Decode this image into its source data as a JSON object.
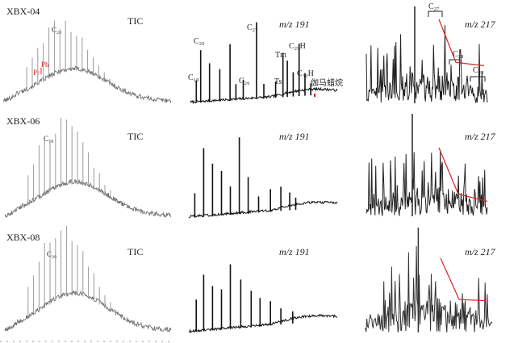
{
  "chart_data": [
    {
      "type": "line",
      "panel": "TIC",
      "rows": [
        {
          "sample": "XBX-04",
          "trace_label": "TIC",
          "annotations": [
            {
              "text": "C₂₀",
              "kind": "peak"
            },
            {
              "text": "Ph",
              "kind": "red"
            },
            {
              "text": "Pr",
              "kind": "red"
            }
          ]
        },
        {
          "sample": "XBX-06",
          "trace_label": "TIC",
          "annotations": [
            {
              "text": "C₁₈",
              "kind": "peak"
            }
          ]
        },
        {
          "sample": "XBX-08",
          "trace_label": "TIC",
          "annotations": [
            {
              "text": "C₂₀",
              "kind": "peak"
            }
          ]
        }
      ]
    },
    {
      "type": "line",
      "panel": "m/z 191",
      "rows": [
        {
          "trace_label": "m/z 191",
          "annotations": [
            {
              "text": "C₂₀",
              "kind": "peak"
            },
            {
              "text": "C₁₉",
              "kind": "peak"
            },
            {
              "text": "C₂₇",
              "kind": "peak"
            },
            {
              "text": "C₂₆",
              "kind": "peak"
            },
            {
              "text": "Tm",
              "kind": "peak"
            },
            {
              "text": "C₂₉H",
              "kind": "peak"
            },
            {
              "text": "Ts",
              "kind": "peak"
            },
            {
              "text": "C₃₀H",
              "kind": "peak"
            },
            {
              "text": "伽马蜡烷",
              "kind": "peak"
            }
          ]
        },
        {
          "trace_label": "m/z 191",
          "annotations": []
        },
        {
          "trace_label": "m/z 191",
          "annotations": []
        }
      ]
    },
    {
      "type": "line",
      "panel": "m/z 217",
      "rows": [
        {
          "trace_label": "m/z 217",
          "annotations": [
            {
              "text": "C₂₇",
              "kind": "peak"
            },
            {
              "text": "C₂₈",
              "kind": "peak"
            },
            {
              "text": "C₂₉",
              "kind": "peak"
            }
          ],
          "sterane_trend": [
            1.0,
            0.35,
            0.3
          ]
        },
        {
          "trace_label": "m/z 217",
          "annotations": [],
          "sterane_trend": [
            1.0,
            0.28,
            0.17
          ]
        },
        {
          "trace_label": "m/z 217",
          "annotations": [],
          "sterane_trend": [
            1.0,
            0.27,
            0.25
          ]
        }
      ]
    }
  ],
  "colors": {
    "trace": "#222222",
    "tic_fill": "#777777",
    "annotation_red": "#dd2222"
  }
}
